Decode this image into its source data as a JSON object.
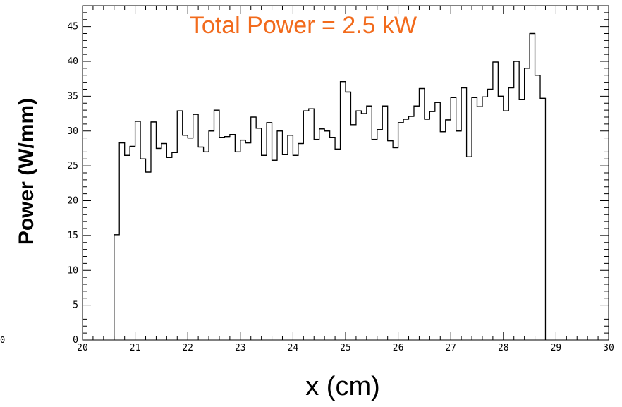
{
  "chart_data": {
    "type": "histogram",
    "title": "Total Power = 2.5 kW",
    "title_color": "#f26b1d",
    "xlabel": "x (cm)",
    "ylabel": "Power (W/mm)",
    "xlim": [
      20,
      30
    ],
    "ylim": [
      0,
      48
    ],
    "xticks": [
      20,
      21,
      22,
      23,
      24,
      25,
      26,
      27,
      28,
      29,
      30
    ],
    "yticks": [
      0,
      5,
      10,
      15,
      20,
      25,
      30,
      35,
      40,
      45
    ],
    "grid": false,
    "line_color": "#000000",
    "bin_width": 0.1,
    "bins_start": 20.6,
    "values": [
      15.1,
      28.3,
      26.5,
      27.8,
      31.4,
      26.0,
      24.1,
      31.3,
      27.5,
      28.2,
      26.2,
      26.9,
      32.9,
      29.4,
      29.0,
      32.4,
      27.7,
      27.0,
      30.0,
      33.0,
      29.1,
      29.2,
      29.5,
      27.0,
      28.7,
      28.3,
      32.0,
      30.4,
      26.5,
      31.2,
      25.8,
      30.0,
      26.6,
      29.4,
      26.5,
      28.2,
      32.9,
      33.2,
      28.8,
      30.3,
      30.0,
      29.1,
      27.4,
      37.1,
      35.6,
      30.9,
      32.9,
      32.5,
      33.6,
      28.8,
      30.2,
      33.6,
      28.6,
      27.6,
      31.2,
      31.7,
      32.1,
      33.6,
      36.1,
      31.7,
      32.8,
      34.1,
      29.9,
      31.6,
      34.8,
      30.0,
      36.2,
      26.3,
      34.8,
      33.5,
      34.9,
      36.0,
      39.9,
      35.0,
      32.9,
      36.2,
      40.0,
      34.5,
      39.0,
      44.0,
      38.0,
      34.7
    ]
  },
  "axis_stray_label": "0"
}
